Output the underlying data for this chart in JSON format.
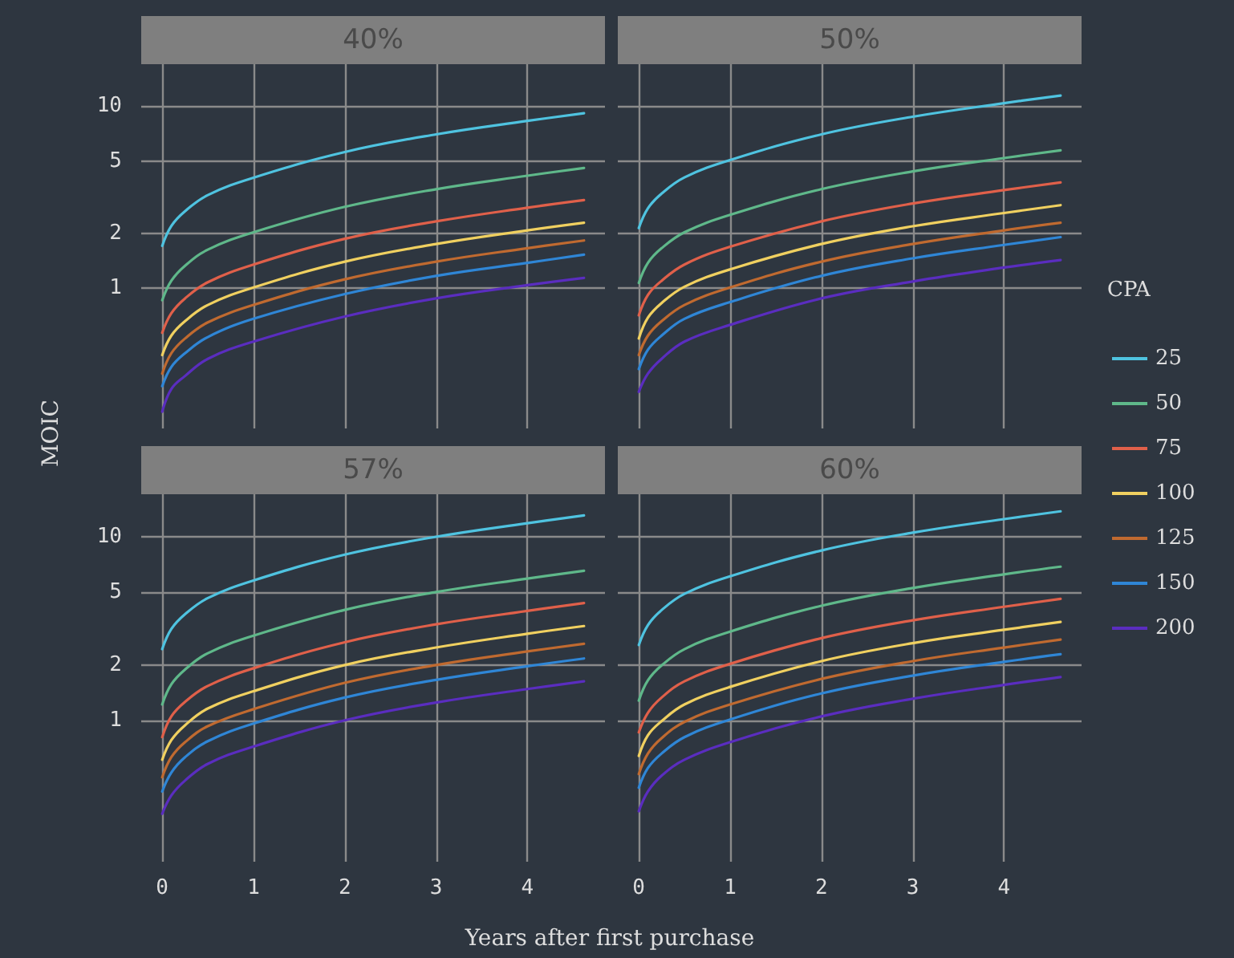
{
  "chart_data": [
    {
      "type": "line",
      "title": "40%",
      "ylabel": "MOIC",
      "log": "y",
      "grid": true,
      "tick_labels": "y",
      "xlim": [
        -0.23,
        4.85
      ],
      "xticks": [
        0,
        1,
        2,
        3,
        4
      ],
      "ylim": [
        0.17,
        17
      ],
      "yticks": [
        1,
        2,
        5,
        10
      ],
      "x": [
        0,
        0.1,
        0.25,
        0.5,
        1,
        2,
        3,
        4,
        4.62
      ],
      "series": [
        {
          "color": "#4fc3e0",
          "values": [
            1.71,
            2.2,
            2.65,
            3.25,
            4.05,
            5.6,
            7.0,
            8.3,
            9.15
          ]
        },
        {
          "color": "#5fb88a",
          "values": [
            0.86,
            1.1,
            1.33,
            1.63,
            2.03,
            2.8,
            3.5,
            4.15,
            4.58
          ]
        },
        {
          "color": "#e0604a",
          "values": [
            0.57,
            0.73,
            0.88,
            1.08,
            1.35,
            1.87,
            2.33,
            2.77,
            3.05
          ]
        },
        {
          "color": "#f0d060",
          "values": [
            0.43,
            0.55,
            0.66,
            0.81,
            1.01,
            1.4,
            1.75,
            2.08,
            2.29
          ]
        },
        {
          "color": "#c06a30",
          "values": [
            0.34,
            0.44,
            0.53,
            0.65,
            0.81,
            1.12,
            1.4,
            1.66,
            1.83
          ]
        },
        {
          "color": "#2f86d6",
          "values": [
            0.29,
            0.37,
            0.44,
            0.54,
            0.68,
            0.93,
            1.17,
            1.38,
            1.53
          ]
        },
        {
          "color": "#5a2dbf",
          "values": [
            0.21,
            0.28,
            0.33,
            0.41,
            0.51,
            0.7,
            0.88,
            1.04,
            1.14
          ]
        }
      ]
    },
    {
      "type": "line",
      "title": "50%",
      "log": "y",
      "grid": true,
      "tick_labels": false,
      "xlim": [
        -0.23,
        4.85
      ],
      "xticks": [
        0,
        1,
        2,
        3,
        4
      ],
      "ylim": [
        0.17,
        17
      ],
      "yticks": [
        1,
        2,
        5,
        10
      ],
      "x": [
        0,
        0.1,
        0.25,
        0.5,
        1,
        2,
        3,
        4,
        4.62
      ],
      "series": [
        {
          "color": "#4fc3e0",
          "values": [
            2.14,
            2.75,
            3.31,
            4.06,
            5.06,
            7.0,
            8.75,
            10.38,
            11.44
          ]
        },
        {
          "color": "#5fb88a",
          "values": [
            1.07,
            1.38,
            1.66,
            2.03,
            2.53,
            3.5,
            4.38,
            5.19,
            5.72
          ]
        },
        {
          "color": "#e0604a",
          "values": [
            0.71,
            0.92,
            1.1,
            1.35,
            1.69,
            2.33,
            2.92,
            3.46,
            3.81
          ]
        },
        {
          "color": "#f0d060",
          "values": [
            0.53,
            0.69,
            0.83,
            1.02,
            1.27,
            1.75,
            2.19,
            2.59,
            2.86
          ]
        },
        {
          "color": "#c06a30",
          "values": [
            0.43,
            0.55,
            0.66,
            0.81,
            1.01,
            1.4,
            1.75,
            2.08,
            2.29
          ]
        },
        {
          "color": "#2f86d6",
          "values": [
            0.36,
            0.46,
            0.55,
            0.68,
            0.84,
            1.17,
            1.46,
            1.73,
            1.91
          ]
        },
        {
          "color": "#5a2dbf",
          "values": [
            0.27,
            0.34,
            0.41,
            0.51,
            0.63,
            0.88,
            1.09,
            1.3,
            1.43
          ]
        }
      ]
    },
    {
      "type": "line",
      "title": "57%",
      "xlabel": "Years after first purchase",
      "log": "y",
      "grid": true,
      "xlim": [
        -0.23,
        4.85
      ],
      "xticks": [
        0,
        1,
        2,
        3,
        4
      ],
      "ylim": [
        0.17,
        17
      ],
      "yticks": [
        1,
        2,
        5,
        10
      ],
      "x": [
        0,
        0.1,
        0.25,
        0.5,
        1,
        2,
        3,
        4,
        4.62
      ],
      "series": [
        {
          "color": "#4fc3e0",
          "values": [
            2.44,
            3.14,
            3.78,
            4.63,
            5.77,
            7.98,
            9.98,
            11.83,
            13.04
          ]
        },
        {
          "color": "#5fb88a",
          "values": [
            1.22,
            1.57,
            1.89,
            2.32,
            2.89,
            3.99,
            4.99,
            5.91,
            6.52
          ]
        },
        {
          "color": "#e0604a",
          "values": [
            0.81,
            1.05,
            1.26,
            1.54,
            1.92,
            2.66,
            3.33,
            3.94,
            4.35
          ]
        },
        {
          "color": "#f0d060",
          "values": [
            0.61,
            0.78,
            0.94,
            1.16,
            1.44,
            2.0,
            2.49,
            2.96,
            3.26
          ]
        },
        {
          "color": "#c06a30",
          "values": [
            0.49,
            0.63,
            0.76,
            0.93,
            1.15,
            1.6,
            2.0,
            2.37,
            2.61
          ]
        },
        {
          "color": "#2f86d6",
          "values": [
            0.41,
            0.52,
            0.63,
            0.77,
            0.96,
            1.33,
            1.66,
            1.97,
            2.17
          ]
        },
        {
          "color": "#5a2dbf",
          "values": [
            0.31,
            0.39,
            0.47,
            0.58,
            0.72,
            1.0,
            1.25,
            1.48,
            1.63
          ]
        }
      ]
    },
    {
      "type": "line",
      "title": "60%",
      "log": "y",
      "grid": true,
      "tick_labels": "x",
      "legend": "right",
      "legend_title": "CPA",
      "xlim": [
        -0.23,
        4.85
      ],
      "xticks": [
        0,
        1,
        2,
        3,
        4
      ],
      "ylim": [
        0.17,
        17
      ],
      "yticks": [
        1,
        2,
        5,
        10
      ],
      "x": [
        0,
        0.1,
        0.25,
        0.5,
        1,
        2,
        3,
        4,
        4.62
      ],
      "series": [
        {
          "name": "25",
          "color": "#4fc3e0",
          "values": [
            2.57,
            3.3,
            3.98,
            4.88,
            6.08,
            8.4,
            10.5,
            12.45,
            13.73
          ]
        },
        {
          "name": "50",
          "color": "#5fb88a",
          "values": [
            1.28,
            1.65,
            1.99,
            2.44,
            3.04,
            4.2,
            5.25,
            6.23,
            6.86
          ]
        },
        {
          "name": "75",
          "color": "#e0604a",
          "values": [
            0.86,
            1.1,
            1.33,
            1.63,
            2.03,
            2.8,
            3.5,
            4.15,
            4.58
          ]
        },
        {
          "name": "100",
          "color": "#f0d060",
          "values": [
            0.64,
            0.83,
            0.99,
            1.22,
            1.52,
            2.1,
            2.63,
            3.11,
            3.43
          ]
        },
        {
          "name": "125",
          "color": "#c06a30",
          "values": [
            0.51,
            0.66,
            0.8,
            0.98,
            1.22,
            1.68,
            2.1,
            2.49,
            2.75
          ]
        },
        {
          "name": "150",
          "color": "#2f86d6",
          "values": [
            0.43,
            0.55,
            0.66,
            0.81,
            1.01,
            1.4,
            1.75,
            2.08,
            2.29
          ]
        },
        {
          "name": "200",
          "color": "#5a2dbf",
          "values": [
            0.32,
            0.41,
            0.5,
            0.61,
            0.76,
            1.05,
            1.31,
            1.56,
            1.72
          ]
        }
      ]
    }
  ]
}
